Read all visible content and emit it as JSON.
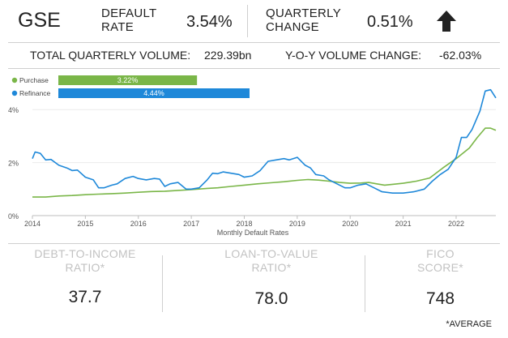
{
  "header": {
    "gse": "GSE",
    "default_rate_label_1": "DEFAULT",
    "default_rate_label_2": "RATE",
    "default_rate_value": "3.54%",
    "quarterly_change_label_1": "QUARTERLY",
    "quarterly_change_label_2": "CHANGE",
    "quarterly_change_value": "0.51%",
    "trend_icon": "arrow-up-icon"
  },
  "volume": {
    "total_label": "TOTAL QUARTERLY VOLUME:",
    "total_value": "229.39bn",
    "yoy_label": "Y-O-Y VOLUME CHANGE:",
    "yoy_value": "-62.03%"
  },
  "chart_data": {
    "type": "line",
    "xlabel": "Monthly Default Rates",
    "ylabel": "",
    "x_ticks": [
      "2014",
      "2015",
      "2016",
      "2017",
      "2018",
      "2019",
      "2020",
      "2021",
      "2022"
    ],
    "y_ticks": [
      "0%",
      "2%",
      "4%"
    ],
    "xlim": [
      2014.0,
      2022.75
    ],
    "ylim": [
      0,
      5.2
    ],
    "grid": "horizontal",
    "legend": [
      {
        "name": "Purchase",
        "value_label": "3.22%",
        "value": 3.22,
        "color": "#7ab648"
      },
      {
        "name": "Refinance",
        "value_label": "4.44%",
        "value": 4.44,
        "color": "#1e88d9"
      }
    ],
    "series": [
      {
        "name": "Purchase",
        "color": "#7ab648",
        "points": [
          [
            2014.0,
            0.7
          ],
          [
            2014.25,
            0.7
          ],
          [
            2014.5,
            0.74
          ],
          [
            2014.75,
            0.76
          ],
          [
            2015.0,
            0.79
          ],
          [
            2015.25,
            0.81
          ],
          [
            2015.5,
            0.83
          ],
          [
            2015.75,
            0.85
          ],
          [
            2016.0,
            0.88
          ],
          [
            2016.25,
            0.91
          ],
          [
            2016.5,
            0.92
          ],
          [
            2016.75,
            0.95
          ],
          [
            2017.0,
            0.98
          ],
          [
            2017.25,
            1.02
          ],
          [
            2017.5,
            1.05
          ],
          [
            2017.75,
            1.1
          ],
          [
            2018.0,
            1.15
          ],
          [
            2018.25,
            1.2
          ],
          [
            2018.5,
            1.24
          ],
          [
            2018.75,
            1.28
          ],
          [
            2019.0,
            1.33
          ],
          [
            2019.2,
            1.36
          ],
          [
            2019.4,
            1.34
          ],
          [
            2019.6,
            1.3
          ],
          [
            2019.8,
            1.25
          ],
          [
            2020.0,
            1.22
          ],
          [
            2020.2,
            1.23
          ],
          [
            2020.35,
            1.25
          ],
          [
            2020.5,
            1.2
          ],
          [
            2020.65,
            1.15
          ],
          [
            2020.8,
            1.18
          ],
          [
            2021.0,
            1.22
          ],
          [
            2021.25,
            1.3
          ],
          [
            2021.5,
            1.42
          ],
          [
            2021.75,
            1.8
          ],
          [
            2022.0,
            2.15
          ],
          [
            2022.25,
            2.55
          ],
          [
            2022.4,
            2.95
          ],
          [
            2022.55,
            3.3
          ],
          [
            2022.65,
            3.3
          ],
          [
            2022.75,
            3.22
          ]
        ]
      },
      {
        "name": "Refinance",
        "color": "#1e88d9",
        "points": [
          [
            2014.0,
            2.15
          ],
          [
            2014.05,
            2.4
          ],
          [
            2014.15,
            2.35
          ],
          [
            2014.25,
            2.1
          ],
          [
            2014.35,
            2.12
          ],
          [
            2014.5,
            1.9
          ],
          [
            2014.65,
            1.8
          ],
          [
            2014.75,
            1.7
          ],
          [
            2014.85,
            1.72
          ],
          [
            2015.0,
            1.45
          ],
          [
            2015.15,
            1.35
          ],
          [
            2015.25,
            1.05
          ],
          [
            2015.35,
            1.05
          ],
          [
            2015.5,
            1.15
          ],
          [
            2015.6,
            1.2
          ],
          [
            2015.75,
            1.4
          ],
          [
            2015.9,
            1.48
          ],
          [
            2016.0,
            1.4
          ],
          [
            2016.15,
            1.35
          ],
          [
            2016.3,
            1.4
          ],
          [
            2016.4,
            1.38
          ],
          [
            2016.5,
            1.1
          ],
          [
            2016.6,
            1.2
          ],
          [
            2016.75,
            1.25
          ],
          [
            2016.9,
            1.0
          ],
          [
            2017.0,
            1.0
          ],
          [
            2017.15,
            1.05
          ],
          [
            2017.3,
            1.35
          ],
          [
            2017.4,
            1.6
          ],
          [
            2017.5,
            1.58
          ],
          [
            2017.6,
            1.65
          ],
          [
            2017.75,
            1.6
          ],
          [
            2017.9,
            1.55
          ],
          [
            2018.0,
            1.45
          ],
          [
            2018.15,
            1.5
          ],
          [
            2018.3,
            1.7
          ],
          [
            2018.45,
            2.05
          ],
          [
            2018.6,
            2.1
          ],
          [
            2018.75,
            2.15
          ],
          [
            2018.85,
            2.1
          ],
          [
            2019.0,
            2.2
          ],
          [
            2019.15,
            1.9
          ],
          [
            2019.25,
            1.8
          ],
          [
            2019.35,
            1.55
          ],
          [
            2019.5,
            1.5
          ],
          [
            2019.6,
            1.35
          ],
          [
            2019.75,
            1.2
          ],
          [
            2019.9,
            1.05
          ],
          [
            2020.0,
            1.05
          ],
          [
            2020.15,
            1.15
          ],
          [
            2020.3,
            1.2
          ],
          [
            2020.45,
            1.05
          ],
          [
            2020.6,
            0.9
          ],
          [
            2020.8,
            0.85
          ],
          [
            2021.0,
            0.85
          ],
          [
            2021.2,
            0.9
          ],
          [
            2021.4,
            1.0
          ],
          [
            2021.55,
            1.3
          ],
          [
            2021.7,
            1.55
          ],
          [
            2021.85,
            1.75
          ],
          [
            2022.0,
            2.2
          ],
          [
            2022.1,
            2.95
          ],
          [
            2022.2,
            2.95
          ],
          [
            2022.3,
            3.25
          ],
          [
            2022.45,
            3.95
          ],
          [
            2022.55,
            4.7
          ],
          [
            2022.65,
            4.75
          ],
          [
            2022.75,
            4.44
          ]
        ]
      }
    ]
  },
  "metrics": [
    {
      "label_1": "DEBT-TO-INCOME",
      "label_2": "RATIO*",
      "value": "37.7"
    },
    {
      "label_1": "LOAN-TO-VALUE",
      "label_2": "RATIO*",
      "value": "78.0"
    },
    {
      "label_1": "FICO",
      "label_2": "SCORE*",
      "value": "748"
    }
  ],
  "footnote": "*AVERAGE"
}
